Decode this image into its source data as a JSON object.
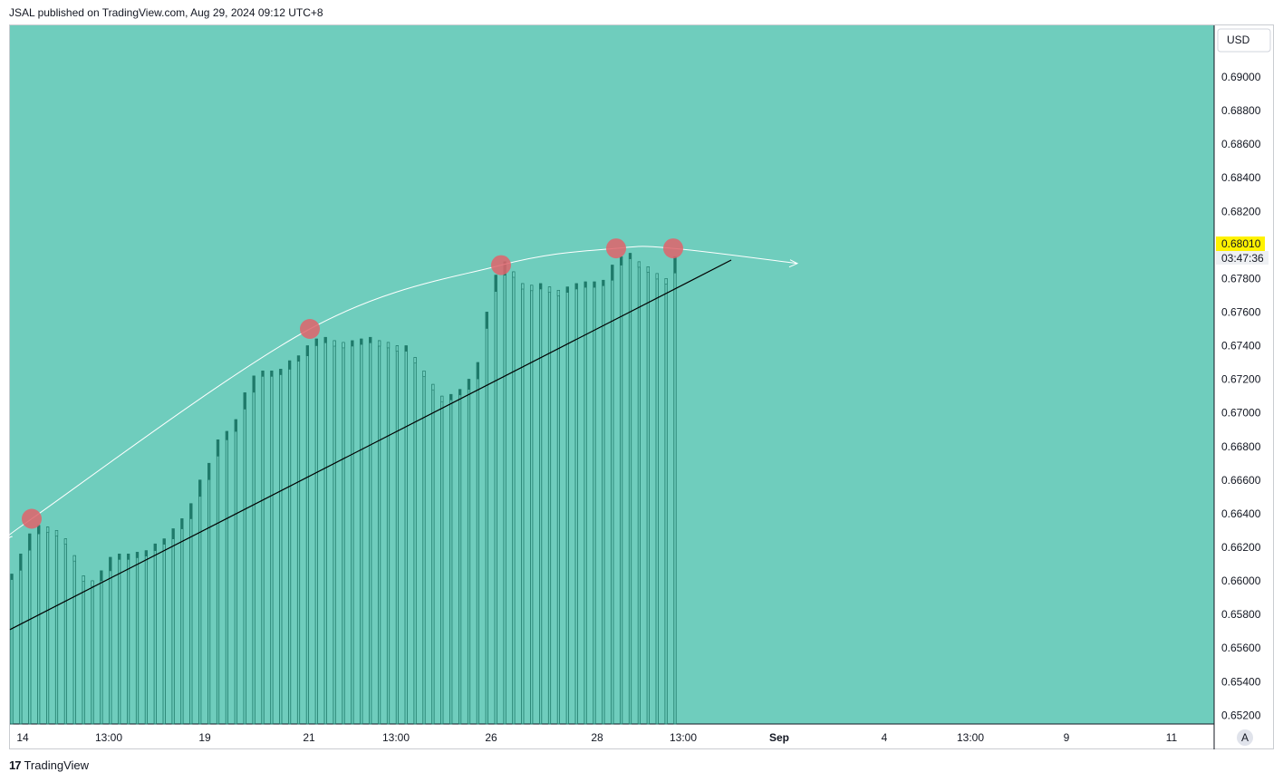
{
  "header": {
    "text": "JSAL published on TradingView.com, Aug 29, 2024 09:12 UTC+8"
  },
  "footer": {
    "brand": "TradingView",
    "logo": "tradingview-logo"
  },
  "colors": {
    "background": "#6FCDBD",
    "bar": "#1F7A6A",
    "up_body": "#1F7A6A",
    "marker": "#E0636B",
    "arc": "#FFFFFF",
    "trendline": "#000000",
    "price_tag": "#FFF200"
  },
  "price_axis": {
    "currency_button": "USD",
    "current_price": "0.68010",
    "countdown": "03:47:36",
    "ticks": [
      "0.69000",
      "0.68800",
      "0.68600",
      "0.68400",
      "0.68200",
      "0.67800",
      "0.67600",
      "0.67400",
      "0.67200",
      "0.67000",
      "0.66800",
      "0.66600",
      "0.66400",
      "0.66200",
      "0.66000",
      "0.65800",
      "0.65600",
      "0.65400",
      "0.65200"
    ],
    "auto_button": "A"
  },
  "time_axis": {
    "labels": [
      {
        "text": "14",
        "bold": false
      },
      {
        "text": "13:00",
        "bold": false
      },
      {
        "text": "19",
        "bold": false
      },
      {
        "text": "21",
        "bold": false
      },
      {
        "text": "13:00",
        "bold": false
      },
      {
        "text": "26",
        "bold": false
      },
      {
        "text": "28",
        "bold": false
      },
      {
        "text": "13:00",
        "bold": false
      },
      {
        "text": "Sep",
        "bold": true
      },
      {
        "text": "4",
        "bold": false
      },
      {
        "text": "13:00",
        "bold": false
      },
      {
        "text": "9",
        "bold": false
      },
      {
        "text": "11",
        "bold": false
      }
    ]
  },
  "chart_data": {
    "type": "bar",
    "title": "",
    "ylim": [
      0.651,
      0.6915
    ],
    "grid": false,
    "series": [
      {
        "closes": [
          0.6604,
          0.6616,
          0.6628,
          0.6633,
          0.6632,
          0.663,
          0.6625,
          0.6615,
          0.6603,
          0.66,
          0.6606,
          0.6614,
          0.6616,
          0.6616,
          0.6617,
          0.6618,
          0.6622,
          0.6625,
          0.6631,
          0.6637,
          0.6646,
          0.666,
          0.667,
          0.6684,
          0.6689,
          0.6696,
          0.6712,
          0.6722,
          0.6725,
          0.6725,
          0.6726,
          0.6731,
          0.6734,
          0.674,
          0.6744,
          0.6745,
          0.6743,
          0.6742,
          0.6743,
          0.6744,
          0.6745,
          0.6743,
          0.6742,
          0.674,
          0.674,
          0.6733,
          0.6725,
          0.6717,
          0.671,
          0.6711,
          0.6714,
          0.672,
          0.673,
          0.676,
          0.6782,
          0.679,
          0.6784,
          0.6777,
          0.6776,
          0.6777,
          0.6775,
          0.6773,
          0.6775,
          0.6777,
          0.6778,
          0.6778,
          0.6779,
          0.6788,
          0.6793,
          0.6795,
          0.679,
          0.6787,
          0.6783,
          0.678,
          0.6793
        ]
      }
    ],
    "annotations": {
      "markers": [
        0.6637,
        0.675,
        0.6788,
        0.6798,
        0.6798
      ],
      "arc_end_price": 0.6789,
      "trendline": {
        "start": 0.6571,
        "end": 0.6791
      }
    }
  }
}
